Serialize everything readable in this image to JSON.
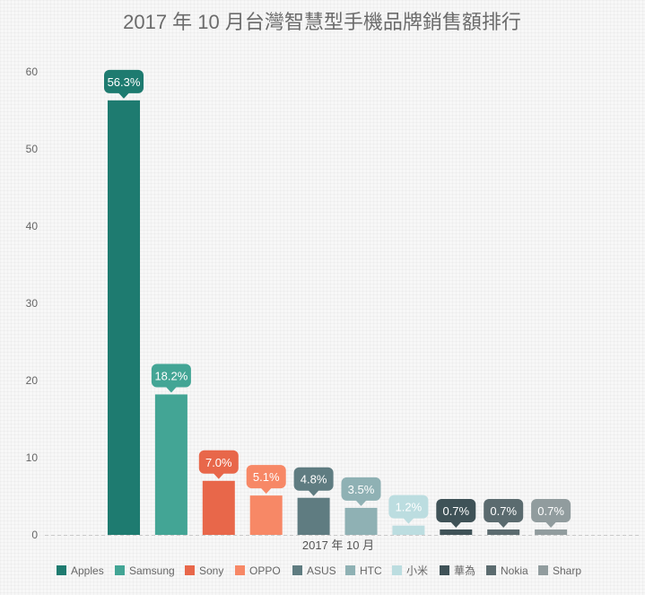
{
  "chart_data": {
    "type": "bar",
    "title": "2017 年 10 月台灣智慧型手機品牌銷售額排行",
    "xlabel": "",
    "ylabel": "",
    "categories": [
      "2017 年 10 月"
    ],
    "ylim": [
      0,
      60
    ],
    "yticks": [
      0,
      10,
      20,
      30,
      40,
      50,
      60
    ],
    "grid": false,
    "legend_position": "bottom",
    "series": [
      {
        "name": "Apples",
        "values": [
          56.3
        ],
        "label": "56.3%",
        "color": "#1e7b70"
      },
      {
        "name": "Samsung",
        "values": [
          18.2
        ],
        "label": "18.2%",
        "color": "#43a595"
      },
      {
        "name": "Sony",
        "values": [
          7.0
        ],
        "label": "7.0%",
        "color": "#e8674a"
      },
      {
        "name": "OPPO",
        "values": [
          5.1
        ],
        "label": "5.1%",
        "color": "#f78866"
      },
      {
        "name": "ASUS",
        "values": [
          4.8
        ],
        "label": "4.8%",
        "color": "#5f7c81"
      },
      {
        "name": "HTC",
        "values": [
          3.5
        ],
        "label": "3.5%",
        "color": "#8fb1b4"
      },
      {
        "name": "小米",
        "values": [
          1.2
        ],
        "label": "1.2%",
        "color": "#bcdde0"
      },
      {
        "name": "華為",
        "values": [
          0.7
        ],
        "label": "0.7%",
        "color": "#3f5257"
      },
      {
        "name": "Nokia",
        "values": [
          0.7
        ],
        "label": "0.7%",
        "color": "#5b6b6f"
      },
      {
        "name": "Sharp",
        "values": [
          0.7
        ],
        "label": "0.7%",
        "color": "#919c9e"
      }
    ]
  }
}
